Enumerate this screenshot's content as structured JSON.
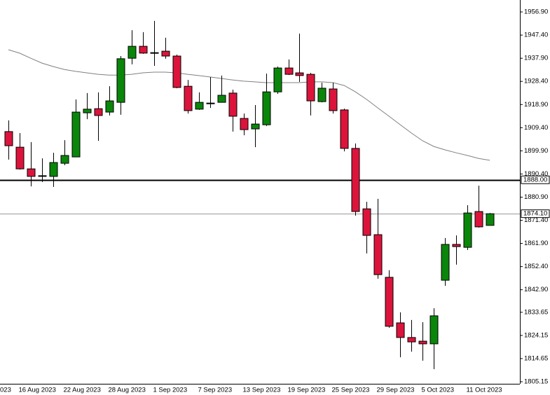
{
  "chart_data": {
    "type": "candlestick",
    "x_cut_label": "023",
    "categories": [
      null,
      "16 Aug 2023",
      null,
      null,
      null,
      "22 Aug 2023",
      null,
      null,
      null,
      "28 Aug 2023",
      null,
      null,
      null,
      "1 Sep 2023",
      null,
      null,
      null,
      "7 Sep 2023",
      null,
      null,
      null,
      "13 Sep 2023",
      null,
      null,
      null,
      "19 Sep 2023",
      null,
      null,
      null,
      "25 Sep 2023",
      null,
      null,
      null,
      "29 Sep 2023",
      null,
      null,
      null,
      "5 Oct 2023",
      null,
      null,
      null,
      "11 Oct 2023",
      null,
      null
    ],
    "open": [
      1907.8,
      1901.4,
      1892.5,
      1889.7,
      1889.4,
      1894.8,
      1897.4,
      1915.5,
      1917.2,
      1915.8,
      1919.8,
      1937.9,
      1942.8,
      1940.2,
      1940.8,
      1938.8,
      1926.4,
      1917.0,
      1919.5,
      1919.8,
      1923.6,
      1913.2,
      1908.9,
      1910.6,
      1924.1,
      1933.9,
      1931.9,
      1931.3,
      1920.1,
      1925.3,
      1916.7,
      1900.9,
      1876.1,
      1865.5,
      1848.0,
      1829.3,
      1823.3,
      1821.8,
      1820.7,
      1846.8,
      1861.5,
      1860.3,
      1875.0,
      1869.3
    ],
    "high": [
      1912.4,
      1907.2,
      1903.5,
      1896.8,
      1899.1,
      1904.3,
      1921.0,
      1923.6,
      1923.9,
      1926.4,
      1938.8,
      1949.4,
      1948.6,
      1953.2,
      1946.3,
      1939.4,
      1929.0,
      1923.9,
      1930.2,
      1930.8,
      1925.0,
      1915.2,
      1918.7,
      1931.6,
      1934.5,
      1937.4,
      1948.0,
      1931.9,
      1927.9,
      1927.9,
      1917.2,
      1902.9,
      1879.0,
      1880.2,
      1850.9,
      1833.6,
      1830.5,
      1829.6,
      1835.3,
      1864.1,
      1865.2,
      1877.6,
      1885.6,
      1874.4
    ],
    "low": [
      1896.3,
      1892.2,
      1885.3,
      1887.1,
      1885.1,
      1894.0,
      1897.4,
      1912.9,
      1904.0,
      1914.4,
      1914.7,
      1935.4,
      1939.7,
      1934.8,
      1937.7,
      1925.6,
      1915.2,
      1916.7,
      1917.5,
      1919.8,
      1907.8,
      1906.3,
      1901.4,
      1910.1,
      1923.3,
      1931.0,
      1928.2,
      1914.4,
      1919.8,
      1915.2,
      1899.7,
      1873.3,
      1857.8,
      1847.4,
      1827.3,
      1815.2,
      1817.5,
      1813.8,
      1810.3,
      1844.5,
      1853.2,
      1859.2,
      1868.4,
      1869.3
    ],
    "close": [
      1902.0,
      1892.5,
      1889.4,
      1889.7,
      1895.1,
      1898.0,
      1915.8,
      1917.0,
      1914.4,
      1920.4,
      1937.7,
      1942.8,
      1940.0,
      1940.2,
      1938.8,
      1925.9,
      1916.4,
      1919.8,
      1919.5,
      1922.7,
      1914.1,
      1908.6,
      1910.9,
      1924.1,
      1933.9,
      1931.3,
      1930.8,
      1920.4,
      1925.6,
      1916.4,
      1900.9,
      1875.0,
      1865.2,
      1849.1,
      1827.9,
      1823.3,
      1821.5,
      1820.7,
      1832.2,
      1861.5,
      1860.6,
      1874.4,
      1868.7,
      1874.1
    ],
    "ma": {
      "color": "#808080",
      "values": [
        1941.4,
        1940.0,
        1937.9,
        1935.9,
        1934.5,
        1933.3,
        1932.5,
        1931.9,
        1931.3,
        1931.0,
        1931.0,
        1931.3,
        1931.9,
        1932.2,
        1932.2,
        1931.9,
        1931.3,
        1930.8,
        1930.2,
        1929.6,
        1929.0,
        1928.5,
        1928.2,
        1927.9,
        1927.9,
        1927.9,
        1927.9,
        1928.2,
        1928.2,
        1927.9,
        1926.7,
        1924.1,
        1921.0,
        1917.5,
        1914.1,
        1910.6,
        1907.2,
        1904.0,
        1901.7,
        1900.3,
        1899.1,
        1898.0,
        1896.8,
        1896.0
      ]
    },
    "up_color": "#0a860a",
    "down_color": "#dc143c",
    "ylim": [
      1804.3,
      1961.8
    ],
    "yticks": [
      {
        "value": 1956.9,
        "label": "1956.90"
      },
      {
        "value": 1947.4,
        "label": "1947.40"
      },
      {
        "value": 1937.9,
        "label": "1937.90"
      },
      {
        "value": 1928.4,
        "label": "1928.40"
      },
      {
        "value": 1918.9,
        "label": "1918.90"
      },
      {
        "value": 1909.4,
        "label": "1909.40"
      },
      {
        "value": 1899.9,
        "label": "1899.90"
      },
      {
        "value": 1890.4,
        "label": "1890.40"
      },
      {
        "value": 1880.9,
        "label": "1880.90"
      },
      {
        "value": 1871.4,
        "label": "1871.40"
      },
      {
        "value": 1861.9,
        "label": "1861.90"
      },
      {
        "value": 1852.4,
        "label": "1852.40"
      },
      {
        "value": 1842.9,
        "label": "1842.90"
      },
      {
        "value": 1833.65,
        "label": "1833.65"
      },
      {
        "value": 1824.15,
        "label": "1824.15"
      },
      {
        "value": 1814.65,
        "label": "1814.65"
      },
      {
        "value": 1805.15,
        "label": "1805.15"
      }
    ],
    "hlines": [
      {
        "value": 1888,
        "label": "1888.00",
        "color": "#000000",
        "width": 2
      },
      {
        "value": 1874.1,
        "label": "1874.10",
        "color": "#9a9a9a",
        "width": 1
      }
    ]
  }
}
